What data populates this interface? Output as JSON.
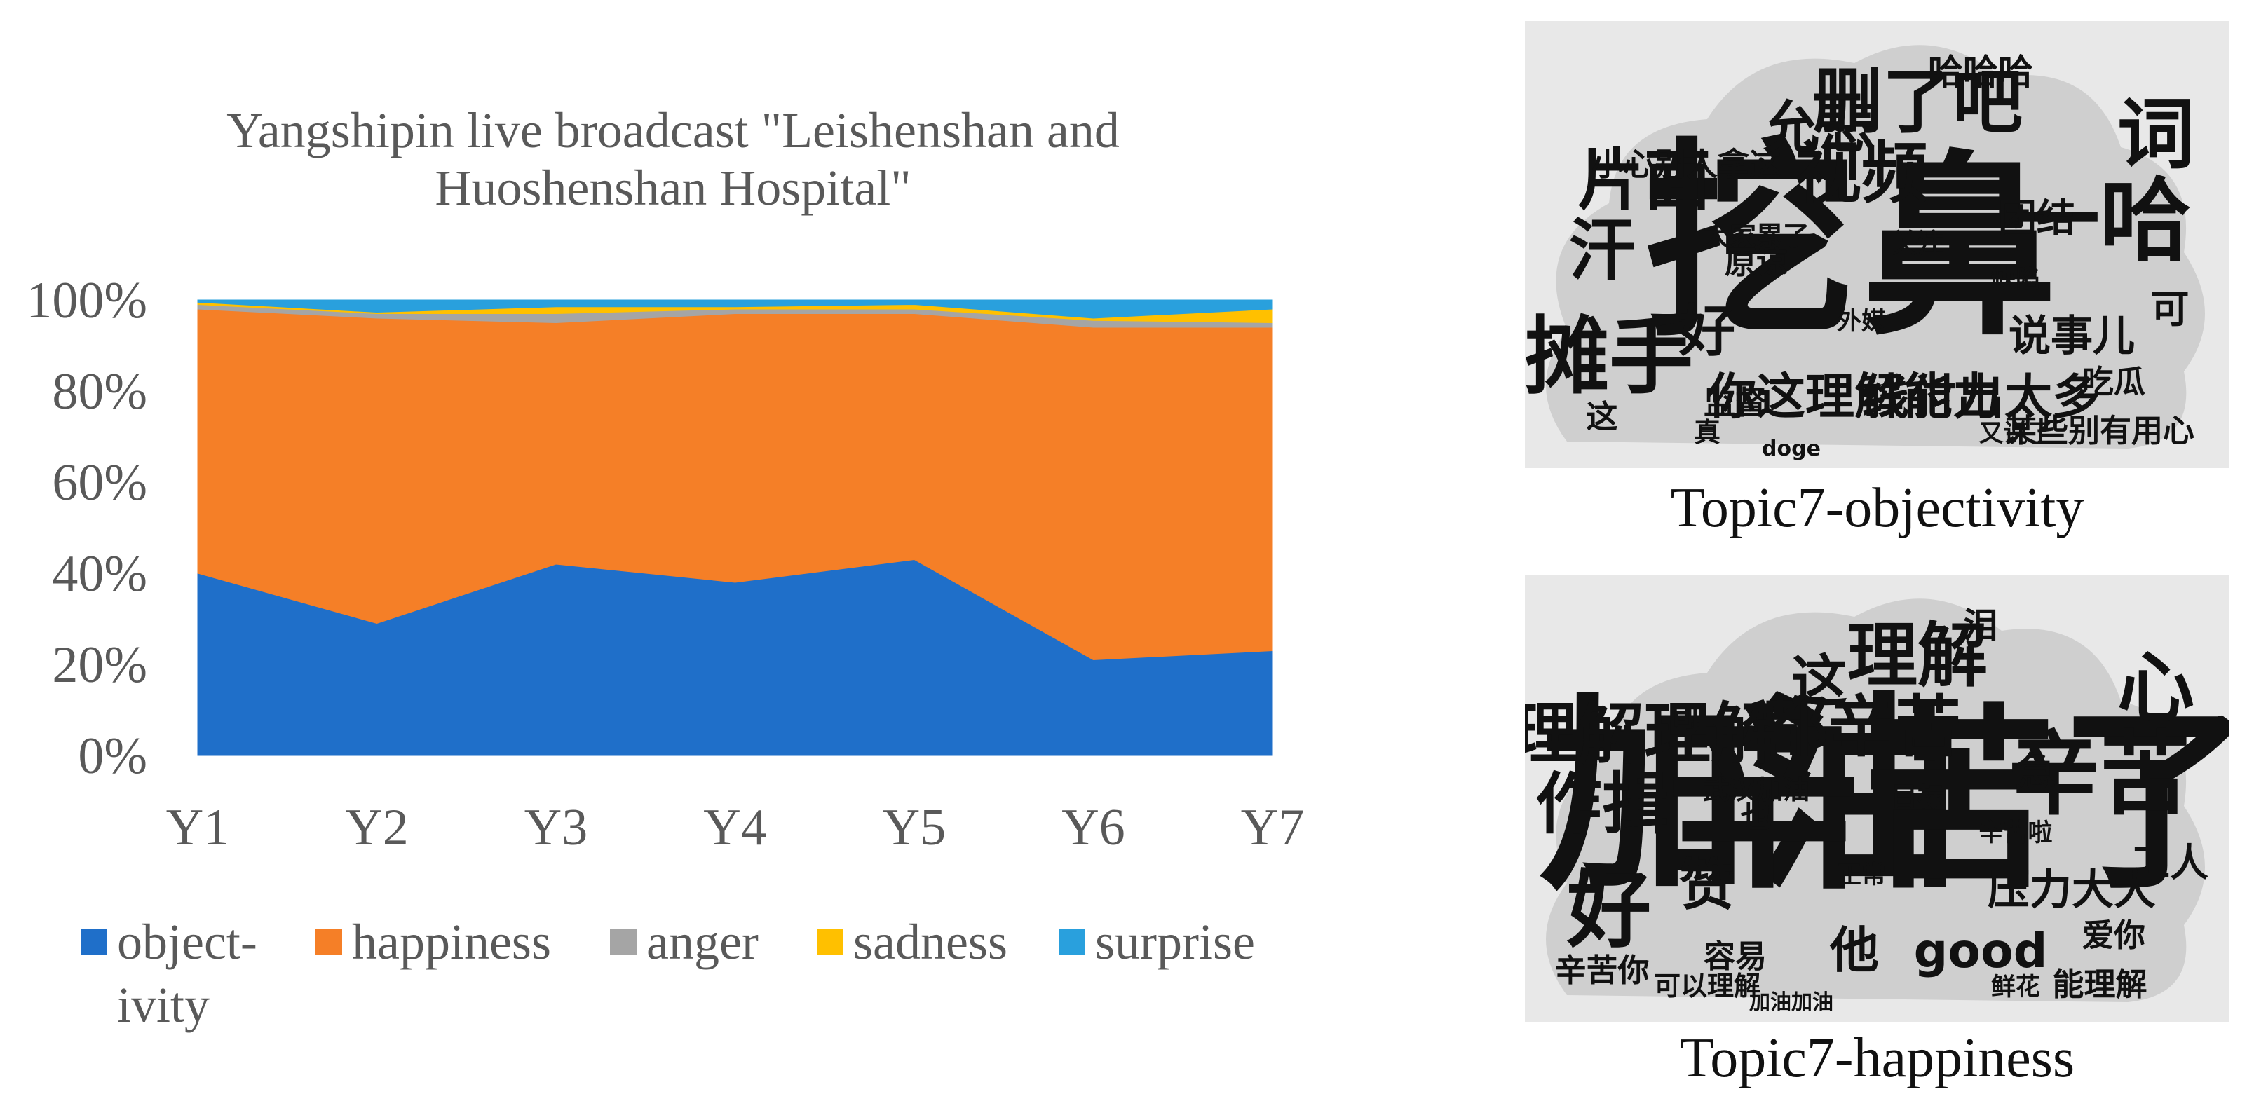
{
  "chart_data": {
    "type": "area",
    "stacked": "percent",
    "title": "Yangshipin live broadcast \"Leishenshan and Huoshenshan Hospital\"",
    "title_lines": [
      "Yangshipin live broadcast \"Leishenshan and",
      "Huoshenshan Hospital\""
    ],
    "categories": [
      "Y1",
      "Y2",
      "Y3",
      "Y4",
      "Y5",
      "Y6",
      "Y7"
    ],
    "ylim": [
      0,
      100
    ],
    "yticks": [
      "0%",
      "20%",
      "40%",
      "60%",
      "80%",
      "100%"
    ],
    "series": [
      {
        "name": "objectivity",
        "legend_lines": [
          "object-",
          "ivity"
        ],
        "color": "#1f6fc9",
        "values": [
          40,
          29,
          42,
          38,
          43,
          21,
          23
        ]
      },
      {
        "name": "happiness",
        "legend_lines": [
          "happiness"
        ],
        "color": "#f57f27",
        "values": [
          58,
          67,
          53,
          59,
          54,
          73,
          71
        ]
      },
      {
        "name": "anger",
        "legend_lines": [
          "anger"
        ],
        "color": "#a5a5a5",
        "values": [
          1,
          1,
          2,
          1,
          1,
          1.5,
          1
        ]
      },
      {
        "name": "sadness",
        "legend_lines": [
          "sadness"
        ],
        "color": "#ffc000",
        "values": [
          0.5,
          0.3,
          1.5,
          0.5,
          1,
          0.5,
          3
        ]
      },
      {
        "name": "surprise",
        "legend_lines": [
          "surprise"
        ],
        "color": "#29a0dd",
        "values": [
          0.5,
          2.7,
          1.5,
          1.5,
          1,
          4,
          2
        ]
      }
    ]
  },
  "wordclouds": [
    {
      "caption": "Topic7-objectivity",
      "words": [
        "挖",
        "鼻",
        "一哈",
        "摊手",
        "词",
        "删了吧",
        "视频",
        "片面",
        "允悲",
        "汗",
        "好",
        "你这理解能力",
        "线付出太多",
        "说事儿",
        "团结",
        "哈哈哈",
        "小心别人拿这",
        "可",
        "吃瓜",
        "原谅",
        "监督",
        "这",
        "真",
        "某些别有用心",
        "又说了",
        "大家累了",
        "缺陷",
        "关注",
        "外媒",
        "doge"
      ]
    },
    {
      "caption": "Topic7-happiness",
      "words": [
        "加油",
        "辛苦了",
        "辛苦",
        "好",
        "心",
        "理解",
        "都辛苦",
        "理解理解",
        "这",
        "作揖",
        "赞",
        "他",
        "good",
        "压力大大",
        "急",
        "泪",
        "可",
        "工人",
        "爱你",
        "也",
        "容易",
        "辛苦你",
        "可以理解",
        "能理解",
        "鲜花",
        "武汉加油",
        "辛苦啦",
        "目标",
        "正常",
        "加油加油"
      ]
    }
  ]
}
